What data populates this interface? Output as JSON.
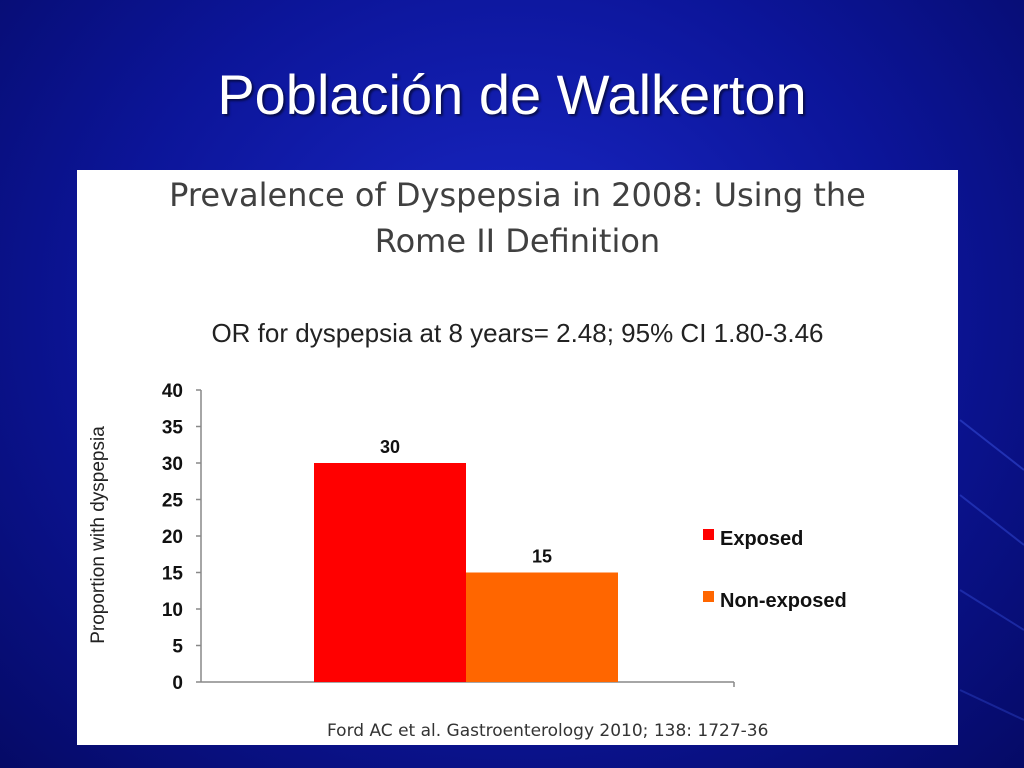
{
  "slide": {
    "title": "Población de Walkerton"
  },
  "chart_data": {
    "type": "bar",
    "title": "Prevalence of Dyspepsia in 2008: Using the Rome II Definition",
    "title_lines": [
      "Prevalence of Dyspepsia in 2008: Using the",
      "Rome II Definition"
    ],
    "subtitle": "OR for dyspepsia  at 8 years= 2.48; 95% CI 1.80-3.46",
    "ylabel": "Proportion with dyspepsia",
    "xlabel": "",
    "ylim": [
      0,
      40
    ],
    "yticks": [
      0,
      5,
      10,
      15,
      20,
      25,
      30,
      35,
      40
    ],
    "grid": false,
    "legend_position": "right",
    "series": [
      {
        "name": "Exposed",
        "values": [
          30
        ],
        "color": "#ff0000"
      },
      {
        "name": "Non-exposed",
        "values": [
          15
        ],
        "color": "#ff6600"
      }
    ],
    "data_labels": [
      "30",
      "15"
    ],
    "citation": "Ford AC et al. Gastroenterology 2010; 138: 1727-36"
  }
}
